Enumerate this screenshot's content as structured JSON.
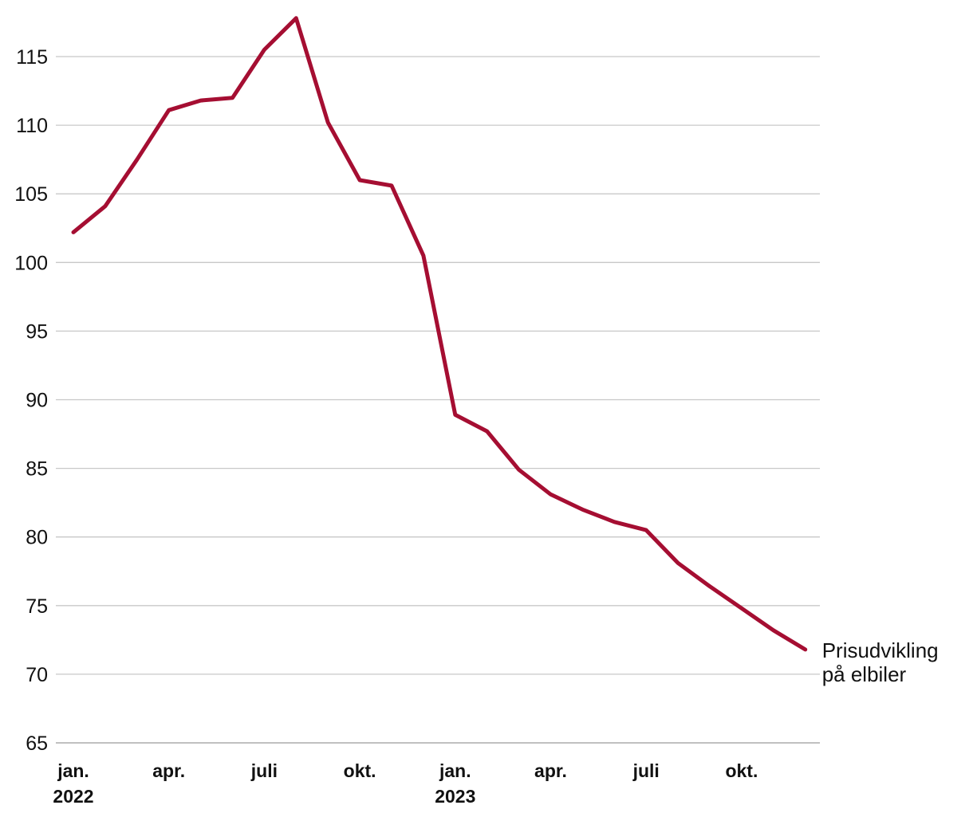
{
  "chart_data": {
    "type": "line",
    "title": "",
    "xlabel": "",
    "ylabel": "",
    "ylim": [
      65,
      117
    ],
    "yticks": [
      65,
      70,
      75,
      80,
      85,
      90,
      95,
      100,
      105,
      110,
      115
    ],
    "grid": true,
    "x": [
      "2022-01",
      "2022-02",
      "2022-03",
      "2022-04",
      "2022-05",
      "2022-06",
      "2022-07",
      "2022-08",
      "2022-09",
      "2022-10",
      "2022-11",
      "2022-12",
      "2023-01",
      "2023-02",
      "2023-03",
      "2023-04",
      "2023-05",
      "2023-06",
      "2023-07",
      "2023-08",
      "2023-09",
      "2023-10",
      "2023-11",
      "2023-12"
    ],
    "xtick_labels": [
      {
        "x": "2022-01",
        "label": "jan.",
        "sublabel": "2022"
      },
      {
        "x": "2022-04",
        "label": "apr.",
        "sublabel": ""
      },
      {
        "x": "2022-07",
        "label": "juli",
        "sublabel": ""
      },
      {
        "x": "2022-10",
        "label": "okt.",
        "sublabel": ""
      },
      {
        "x": "2023-01",
        "label": "jan.",
        "sublabel": "2023"
      },
      {
        "x": "2023-04",
        "label": "apr.",
        "sublabel": ""
      },
      {
        "x": "2023-07",
        "label": "juli",
        "sublabel": ""
      },
      {
        "x": "2023-10",
        "label": "okt.",
        "sublabel": ""
      }
    ],
    "series": [
      {
        "name": "Prisudvikling på elbiler",
        "label_lines": [
          "Prisudvikling",
          "på elbiler"
        ],
        "color": "#a50e32",
        "values": [
          102.2,
          104.1,
          107.5,
          111.1,
          111.8,
          112.0,
          115.5,
          117.8,
          110.2,
          106.0,
          105.6,
          100.5,
          88.9,
          87.7,
          84.9,
          83.1,
          82.0,
          81.1,
          80.5,
          78.1,
          76.4,
          74.8,
          73.2,
          71.8
        ]
      }
    ]
  }
}
